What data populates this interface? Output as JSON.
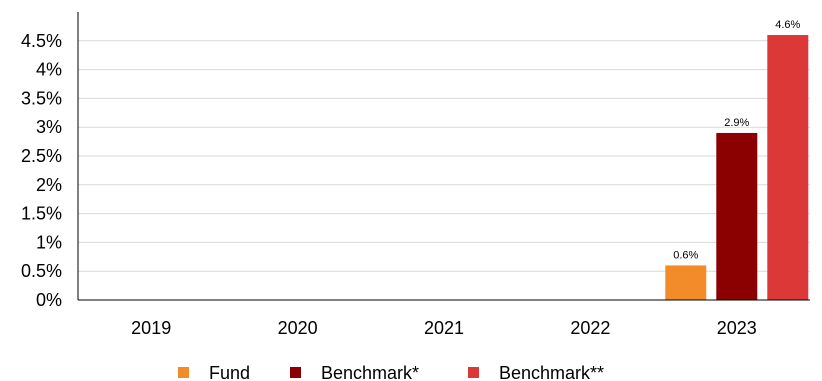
{
  "chart_data": {
    "type": "bar",
    "categories": [
      "2019",
      "2020",
      "2021",
      "2022",
      "2023"
    ],
    "series": [
      {
        "name": "Fund",
        "values": [
          null,
          null,
          null,
          null,
          0.6
        ],
        "labels": [
          "",
          "",
          "",
          "",
          "0.6%"
        ],
        "color": "#f28c28"
      },
      {
        "name": "Benchmark*",
        "values": [
          null,
          null,
          null,
          null,
          2.9
        ],
        "labels": [
          "",
          "",
          "",
          "",
          "2.9%"
        ],
        "color": "#8b0000"
      },
      {
        "name": "Benchmark**",
        "values": [
          null,
          null,
          null,
          null,
          4.6
        ],
        "labels": [
          "",
          "",
          "",
          "",
          "4.6%"
        ],
        "color": "#dc3838"
      }
    ],
    "y_ticks": [
      "0%",
      "0.5%",
      "1%",
      "1.5%",
      "2%",
      "2.5%",
      "3%",
      "3.5%",
      "4%",
      "4.5%"
    ],
    "ylim": [
      0,
      5
    ],
    "grid": true,
    "legend_position": "bottom"
  }
}
